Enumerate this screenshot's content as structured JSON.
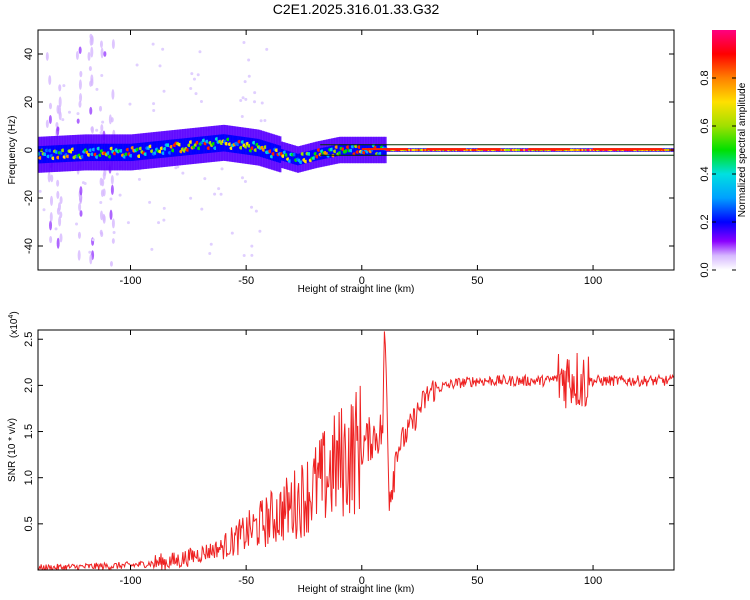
{
  "title": "C2E1.2025.316.01.33.G32",
  "chart_data": [
    {
      "type": "heatmap",
      "title": "C2E1.2025.316.01.33.G32",
      "xlabel": "Height of straight line (km)",
      "ylabel": "Frequency (Hz)",
      "xlim": [
        -140,
        135
      ],
      "ylim": [
        -50,
        50
      ],
      "x_ticks": [
        -100,
        -50,
        0,
        50,
        100
      ],
      "y_ticks": [
        -40,
        -20,
        0,
        20,
        40
      ],
      "colorbar": {
        "label": "Normalized spectral amplitude",
        "range": [
          0,
          1
        ],
        "ticks": [
          "0.0",
          "0.2",
          "0.4",
          "0.6",
          "0.8"
        ],
        "colormap": [
          "#ffffff",
          "#c8a0ff",
          "#7a00ff",
          "#0000ff",
          "#00a0ff",
          "#00e0e0",
          "#00e000",
          "#a0e000",
          "#ffe000",
          "#ff8000",
          "#ff0000",
          "#ff0080"
        ]
      },
      "ridge": {
        "description_values_height_km": [
          -140,
          -120,
          -100,
          -80,
          -60,
          -45,
          -35,
          -28,
          -20,
          -10,
          0,
          10,
          40,
          80,
          135
        ],
        "frequency_hz": [
          -2,
          -1,
          -1,
          1,
          3,
          1,
          -2,
          -4,
          -2,
          0,
          0,
          0,
          0,
          0,
          0
        ]
      }
    },
    {
      "type": "line",
      "xlabel": "Height of straight line (km)",
      "ylabel": "SNR (10 * v/v)",
      "multiplier_label": "(x10",
      "multiplier_exp": "4",
      "multiplier_close": ")",
      "xlim": [
        -140,
        135
      ],
      "ylim": [
        0,
        2.6
      ],
      "x_ticks": [
        -100,
        -50,
        0,
        50,
        100
      ],
      "y_ticks": [
        "0.5",
        "1.0",
        "1.5",
        "2.0",
        "2.5"
      ],
      "series": [
        {
          "color": "#ee2222",
          "trend_x": [
            -140,
            -100,
            -80,
            -60,
            -50,
            -40,
            -30,
            -20,
            -10,
            0,
            5,
            9,
            10,
            12,
            15,
            20,
            25,
            30,
            40,
            50,
            80,
            85,
            90,
            95,
            100,
            135
          ],
          "trend_y": [
            0.02,
            0.05,
            0.1,
            0.25,
            0.4,
            0.55,
            0.7,
            0.9,
            1.15,
            1.35,
            1.45,
            1.5,
            2.6,
            0.8,
            1.3,
            1.5,
            1.75,
            1.95,
            2.02,
            2.05,
            2.05,
            2.08,
            2.1,
            2.05,
            2.05,
            2.05
          ]
        }
      ]
    }
  ]
}
